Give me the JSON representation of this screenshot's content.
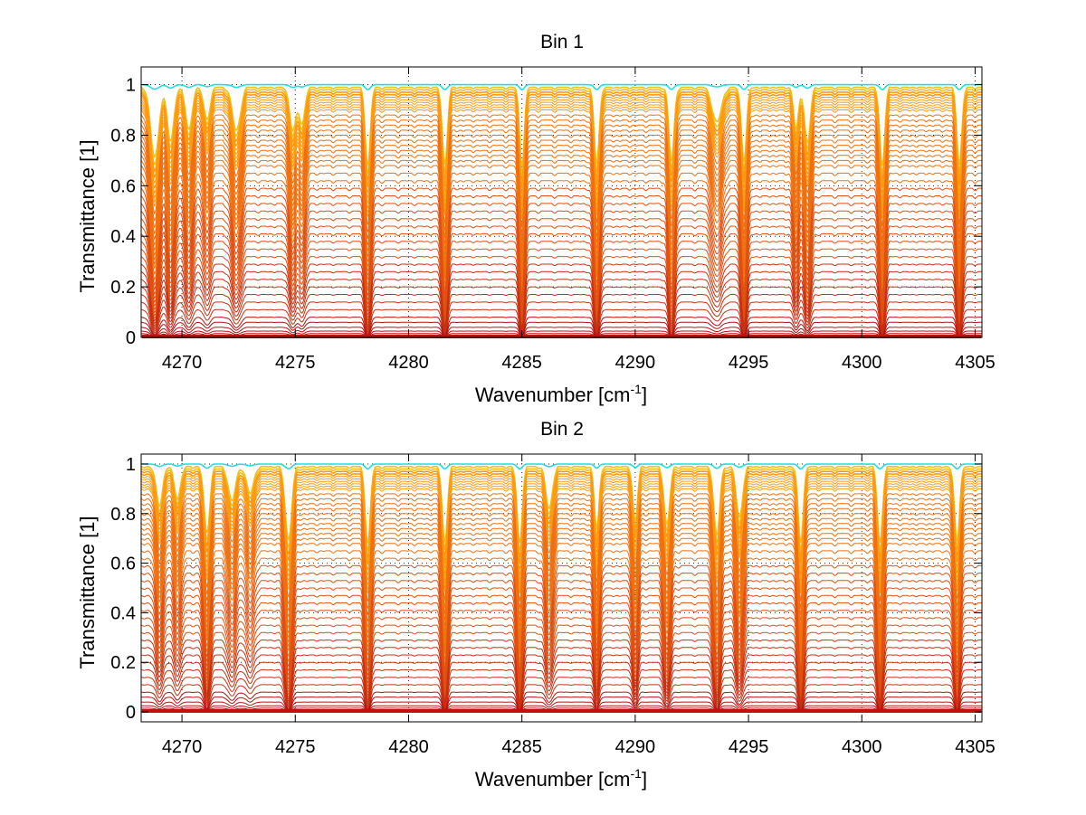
{
  "figure": {
    "background": "#ffffff"
  },
  "chart_data": [
    {
      "type": "line",
      "title": "Bin 1",
      "xlabel_main": "Wavenumber [cm",
      "xlabel_sup": "-1",
      "xlabel_close": "]",
      "ylabel": "Transmittance [1]",
      "xlim": [
        4268.2,
        4305.3
      ],
      "ylim": [
        0,
        1.07
      ],
      "xticks": [
        4270,
        4275,
        4280,
        4285,
        4290,
        4295,
        4300,
        4305
      ],
      "xtick_labels": [
        "4270",
        "4275",
        "4280",
        "4285",
        "4290",
        "4295",
        "4300",
        "4305"
      ],
      "yticks": [
        0,
        0.2,
        0.4,
        0.6,
        0.8,
        1
      ],
      "ytick_labels": [
        "0",
        "0.2",
        "0.4",
        "0.6",
        "0.8",
        "1"
      ],
      "grid": true,
      "series_description": "family of transmittance spectra for increasing absorber path, colormap from cyan/yellow/orange (T≈1) to dark red (T≈0)",
      "series_levels": [
        1.0,
        0.99,
        0.98,
        0.97,
        0.96,
        0.95,
        0.94,
        0.93,
        0.92,
        0.91,
        0.9,
        0.88,
        0.86,
        0.84,
        0.82,
        0.8,
        0.78,
        0.76,
        0.74,
        0.72,
        0.7,
        0.68,
        0.65,
        0.62,
        0.59,
        0.56,
        0.53,
        0.5,
        0.47,
        0.44,
        0.41,
        0.38,
        0.35,
        0.32,
        0.29,
        0.26,
        0.23,
        0.2,
        0.17,
        0.14,
        0.11,
        0.08,
        0.06,
        0.04,
        0.025,
        0.015,
        0.008,
        0.003
      ],
      "absorption_lines": [
        {
          "x": 4268.8,
          "depth": 0.9,
          "width": 0.25
        },
        {
          "x": 4269.5,
          "depth": 0.7,
          "width": 0.2
        },
        {
          "x": 4270.3,
          "depth": 0.55,
          "width": 0.2
        },
        {
          "x": 4271.1,
          "depth": 0.4,
          "width": 0.2
        },
        {
          "x": 4272.4,
          "depth": 0.55,
          "width": 0.25
        },
        {
          "x": 4274.9,
          "depth": 0.55,
          "width": 0.2
        },
        {
          "x": 4275.3,
          "depth": 0.45,
          "width": 0.18
        },
        {
          "x": 4278.2,
          "depth": 0.985,
          "width": 0.16
        },
        {
          "x": 4281.6,
          "depth": 0.97,
          "width": 0.16
        },
        {
          "x": 4285.0,
          "depth": 0.985,
          "width": 0.15
        },
        {
          "x": 4288.3,
          "depth": 0.96,
          "width": 0.16
        },
        {
          "x": 4291.6,
          "depth": 0.95,
          "width": 0.16
        },
        {
          "x": 4293.6,
          "depth": 0.45,
          "width": 0.28
        },
        {
          "x": 4294.8,
          "depth": 0.92,
          "width": 0.16
        },
        {
          "x": 4297.1,
          "depth": 0.55,
          "width": 0.15
        },
        {
          "x": 4297.6,
          "depth": 0.7,
          "width": 0.18
        },
        {
          "x": 4300.9,
          "depth": 0.98,
          "width": 0.16
        },
        {
          "x": 4304.3,
          "depth": 0.96,
          "width": 0.16
        }
      ]
    },
    {
      "type": "line",
      "title": "Bin 2",
      "xlabel_main": "Wavenumber [cm",
      "xlabel_sup": "-1",
      "xlabel_close": "]",
      "ylabel": "Transmittance [1]",
      "xlim": [
        4268.2,
        4305.3
      ],
      "ylim": [
        -0.04,
        1.04
      ],
      "xticks": [
        4270,
        4275,
        4280,
        4285,
        4290,
        4295,
        4300,
        4305
      ],
      "xtick_labels": [
        "4270",
        "4275",
        "4280",
        "4285",
        "4290",
        "4295",
        "4300",
        "4305"
      ],
      "yticks": [
        0,
        0.2,
        0.4,
        0.6,
        0.8,
        1
      ],
      "ytick_labels": [
        "0",
        "0.2",
        "0.4",
        "0.6",
        "0.8",
        "1"
      ],
      "grid": true,
      "series_description": "family of transmittance spectra for increasing absorber path, colormap from cyan/yellow/orange (T≈1) to dark red (T≈0)",
      "series_levels": [
        1.0,
        0.99,
        0.98,
        0.97,
        0.96,
        0.95,
        0.94,
        0.93,
        0.92,
        0.91,
        0.9,
        0.88,
        0.86,
        0.84,
        0.82,
        0.8,
        0.78,
        0.76,
        0.74,
        0.72,
        0.7,
        0.68,
        0.65,
        0.62,
        0.59,
        0.56,
        0.53,
        0.5,
        0.47,
        0.44,
        0.41,
        0.38,
        0.35,
        0.32,
        0.29,
        0.26,
        0.23,
        0.2,
        0.17,
        0.14,
        0.11,
        0.08,
        0.06,
        0.04,
        0.025,
        0.015,
        0.008,
        0.003
      ],
      "absorption_lines": [
        {
          "x": 4269.0,
          "depth": 0.5,
          "width": 0.2
        },
        {
          "x": 4269.8,
          "depth": 0.4,
          "width": 0.2
        },
        {
          "x": 4271.1,
          "depth": 0.85,
          "width": 0.18
        },
        {
          "x": 4272.2,
          "depth": 0.45,
          "width": 0.22
        },
        {
          "x": 4273.0,
          "depth": 0.35,
          "width": 0.22
        },
        {
          "x": 4274.7,
          "depth": 0.94,
          "width": 0.2
        },
        {
          "x": 4278.2,
          "depth": 0.985,
          "width": 0.16
        },
        {
          "x": 4281.6,
          "depth": 0.97,
          "width": 0.16
        },
        {
          "x": 4284.9,
          "depth": 0.98,
          "width": 0.16
        },
        {
          "x": 4286.2,
          "depth": 0.55,
          "width": 0.2
        },
        {
          "x": 4288.3,
          "depth": 0.8,
          "width": 0.15
        },
        {
          "x": 4290.0,
          "depth": 0.7,
          "width": 0.15
        },
        {
          "x": 4291.4,
          "depth": 0.75,
          "width": 0.18
        },
        {
          "x": 4293.6,
          "depth": 0.9,
          "width": 0.18
        },
        {
          "x": 4294.6,
          "depth": 0.65,
          "width": 0.2
        },
        {
          "x": 4297.3,
          "depth": 0.97,
          "width": 0.16
        },
        {
          "x": 4300.8,
          "depth": 0.985,
          "width": 0.16
        },
        {
          "x": 4304.2,
          "depth": 0.96,
          "width": 0.16
        }
      ]
    }
  ]
}
